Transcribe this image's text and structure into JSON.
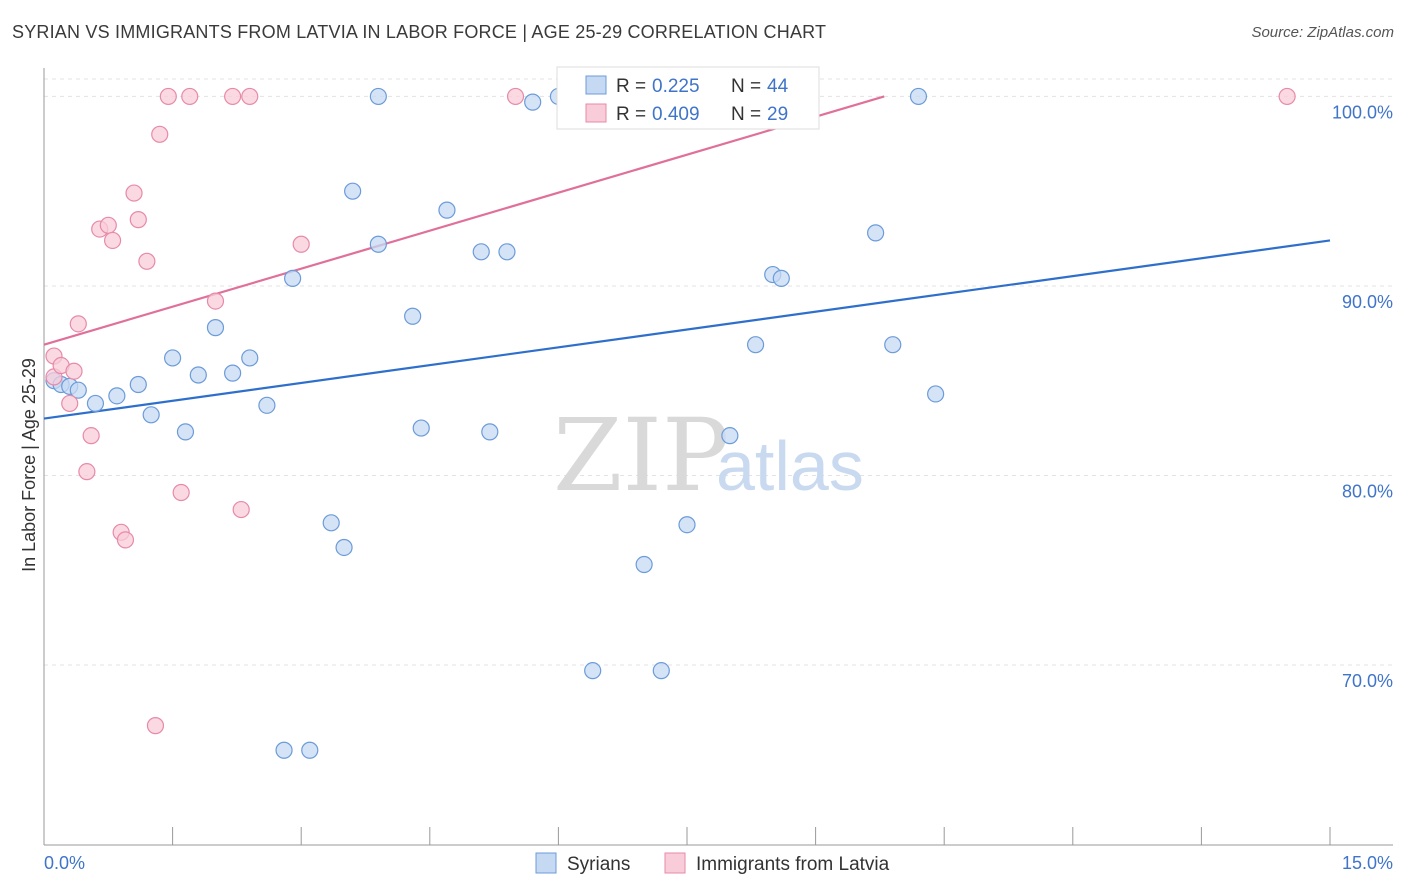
{
  "title": "SYRIAN VS IMMIGRANTS FROM LATVIA IN LABOR FORCE | AGE 25-29 CORRELATION CHART",
  "source": "Source: ZipAtlas.com",
  "watermark": {
    "zip": "ZIP",
    "atlas": "atlas"
  },
  "chart_data": {
    "type": "scatter",
    "ylabel": "In Labor Force | Age 25-29",
    "xlim": [
      0,
      15
    ],
    "ylim": [
      60.5,
      101.5
    ],
    "x_tick_labels": {
      "min": "0.0%",
      "max": "15.0%"
    },
    "y_ticks": [
      {
        "value": 70,
        "label": "70.0%"
      },
      {
        "value": 80,
        "label": "80.0%"
      },
      {
        "value": 90,
        "label": "90.0%"
      },
      {
        "value": 100,
        "label": "100.0%"
      }
    ],
    "grid": true,
    "legend_position": "top-center",
    "series": [
      {
        "name": "Syrians",
        "color": "#6c9bd9",
        "fill": "#c5d9f3",
        "line_color": "#2f6fcc",
        "R": "0.225",
        "N": "44",
        "trend": {
          "x0": 0.0,
          "y0": 83.0,
          "x1": 15.0,
          "y1": 92.4
        },
        "points": [
          [
            0.1,
            85.0
          ],
          [
            0.2,
            84.8
          ],
          [
            0.3,
            84.7
          ],
          [
            0.4,
            84.5
          ],
          [
            0.6,
            83.8
          ],
          [
            0.85,
            84.2
          ],
          [
            1.1,
            84.8
          ],
          [
            1.25,
            83.2
          ],
          [
            1.5,
            86.2
          ],
          [
            1.65,
            82.3
          ],
          [
            1.8,
            85.3
          ],
          [
            2.0,
            87.8
          ],
          [
            2.2,
            85.4
          ],
          [
            2.4,
            86.2
          ],
          [
            2.6,
            83.7
          ],
          [
            2.9,
            90.4
          ],
          [
            3.35,
            77.5
          ],
          [
            3.5,
            76.2
          ],
          [
            3.6,
            95.0
          ],
          [
            3.9,
            92.2
          ],
          [
            4.3,
            88.4
          ],
          [
            4.4,
            82.5
          ],
          [
            4.7,
            94.0
          ],
          [
            5.1,
            91.8
          ],
          [
            5.2,
            82.3
          ],
          [
            5.4,
            91.8
          ],
          [
            5.7,
            99.7
          ],
          [
            6.0,
            100.0
          ],
          [
            6.4,
            69.7
          ],
          [
            7.0,
            75.3
          ],
          [
            7.2,
            69.7
          ],
          [
            7.5,
            77.4
          ],
          [
            8.0,
            82.1
          ],
          [
            8.3,
            86.9
          ],
          [
            8.5,
            90.6
          ],
          [
            8.6,
            90.4
          ],
          [
            8.9,
            100.0
          ],
          [
            9.7,
            92.8
          ],
          [
            9.9,
            86.9
          ],
          [
            10.2,
            100.0
          ],
          [
            10.4,
            84.3
          ],
          [
            3.9,
            100.0
          ],
          [
            2.8,
            65.5
          ],
          [
            3.1,
            65.5
          ]
        ]
      },
      {
        "name": "Immigrants from Latvia",
        "color": "#e78aa8",
        "fill": "#f8ccd9",
        "line_color": "#e0709a",
        "R": "0.409",
        "N": "29",
        "trend": {
          "x0": 0.0,
          "y0": 86.9,
          "x1": 9.8,
          "y1": 100.0
        },
        "points": [
          [
            0.05,
            85.2
          ],
          [
            0.1,
            86.3
          ],
          [
            0.2,
            85.8
          ],
          [
            0.3,
            83.8
          ],
          [
            0.35,
            85.5
          ],
          [
            0.4,
            88.0
          ],
          [
            0.5,
            80.2
          ],
          [
            0.55,
            82.1
          ],
          [
            0.65,
            93.0
          ],
          [
            0.75,
            93.2
          ],
          [
            0.8,
            92.4
          ],
          [
            0.9,
            77.0
          ],
          [
            0.95,
            76.6
          ],
          [
            1.05,
            94.9
          ],
          [
            1.1,
            93.5
          ],
          [
            1.2,
            91.3
          ],
          [
            1.3,
            66.8
          ],
          [
            1.35,
            98.0
          ],
          [
            1.45,
            100.0
          ],
          [
            1.6,
            79.1
          ],
          [
            1.7,
            100.0
          ],
          [
            2.0,
            89.2
          ],
          [
            2.2,
            100.0
          ],
          [
            2.4,
            100.0
          ],
          [
            2.3,
            78.2
          ],
          [
            3.0,
            92.2
          ],
          [
            5.5,
            100.0
          ],
          [
            6.1,
            100.0
          ],
          [
            14.5,
            100.0
          ]
        ]
      }
    ]
  }
}
